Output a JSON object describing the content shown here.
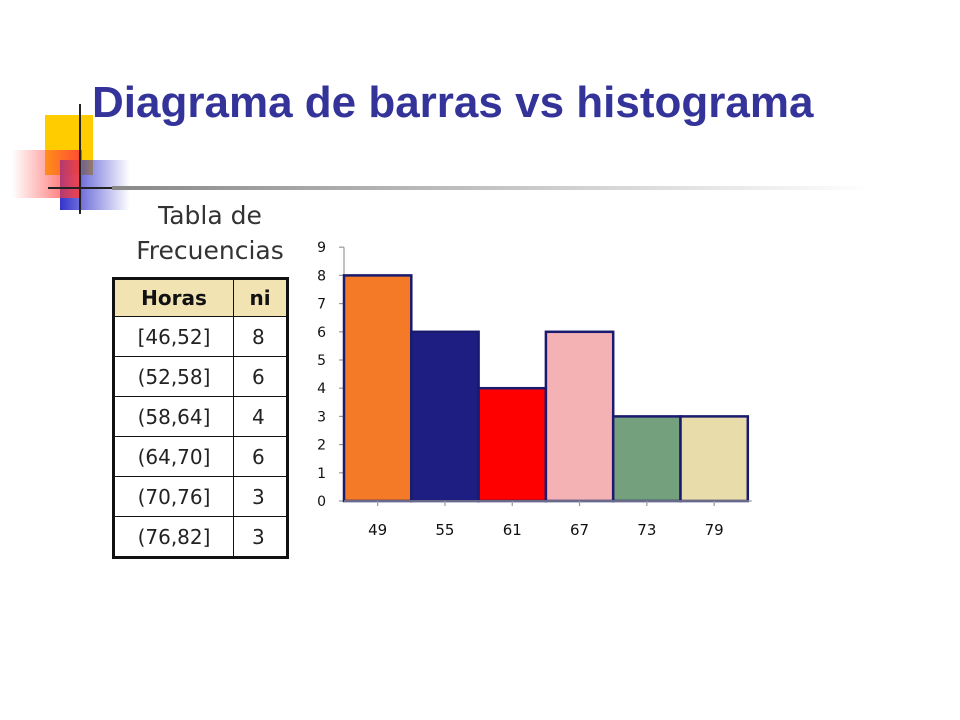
{
  "slide": {
    "title": "Diagrama de barras vs histograma"
  },
  "frequency_table": {
    "title_line1": "Tabla de",
    "title_line2": "Frecuencias",
    "headers": [
      "Horas",
      "ni"
    ],
    "rows": [
      [
        "[46,52]",
        "8"
      ],
      [
        "(52,58]",
        "6"
      ],
      [
        "(58,64]",
        "4"
      ],
      [
        "(64,70]",
        "6"
      ],
      [
        "(70,76]",
        "3"
      ],
      [
        "(76,82]",
        "3"
      ]
    ]
  },
  "chart_data": {
    "type": "bar",
    "categories": [
      "49",
      "55",
      "61",
      "67",
      "73",
      "79"
    ],
    "values": [
      8,
      6,
      4,
      6,
      3,
      3
    ],
    "colors": [
      "#f47a28",
      "#1e1e82",
      "#ff0000",
      "#f4b2b5",
      "#74a07e",
      "#e8ddaa"
    ],
    "edge_color": "#1a1a6e",
    "ylim": [
      0,
      9
    ],
    "yticks": [
      0,
      1,
      2,
      3,
      4,
      5,
      6,
      7,
      8,
      9
    ],
    "grid": false,
    "legend": "none",
    "title": "",
    "xlabel": "",
    "ylabel": ""
  },
  "decoration": {
    "yellow": "#ffcc00",
    "red": "#ff3b3b",
    "blue": "#3333cc",
    "line": "#222222"
  }
}
